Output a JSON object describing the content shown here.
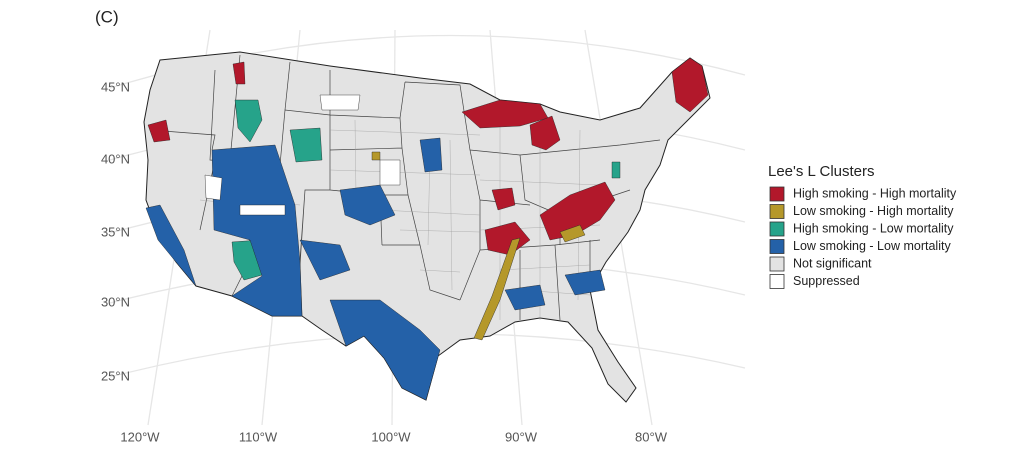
{
  "panel_label": "(C)",
  "latitude_labels": [
    "45°N",
    "40°N",
    "35°N",
    "30°N",
    "25°N"
  ],
  "longitude_labels": [
    "120°W",
    "110°W",
    "100°W",
    "90°W",
    "80°W"
  ],
  "legend": {
    "title": "Lee's L Clusters",
    "items": [
      {
        "label": "High smoking - High mortality",
        "color": "#b2182b"
      },
      {
        "label": "Low smoking - High mortality",
        "color": "#b5982a"
      },
      {
        "label": "High smoking - Low mortality",
        "color": "#26a38a"
      },
      {
        "label": "Low smoking - Low mortality",
        "color": "#2461a8"
      },
      {
        "label": "Not significant",
        "color": "#e3e3e3"
      },
      {
        "label": "Suppressed",
        "color": "#ffffff"
      }
    ]
  }
}
